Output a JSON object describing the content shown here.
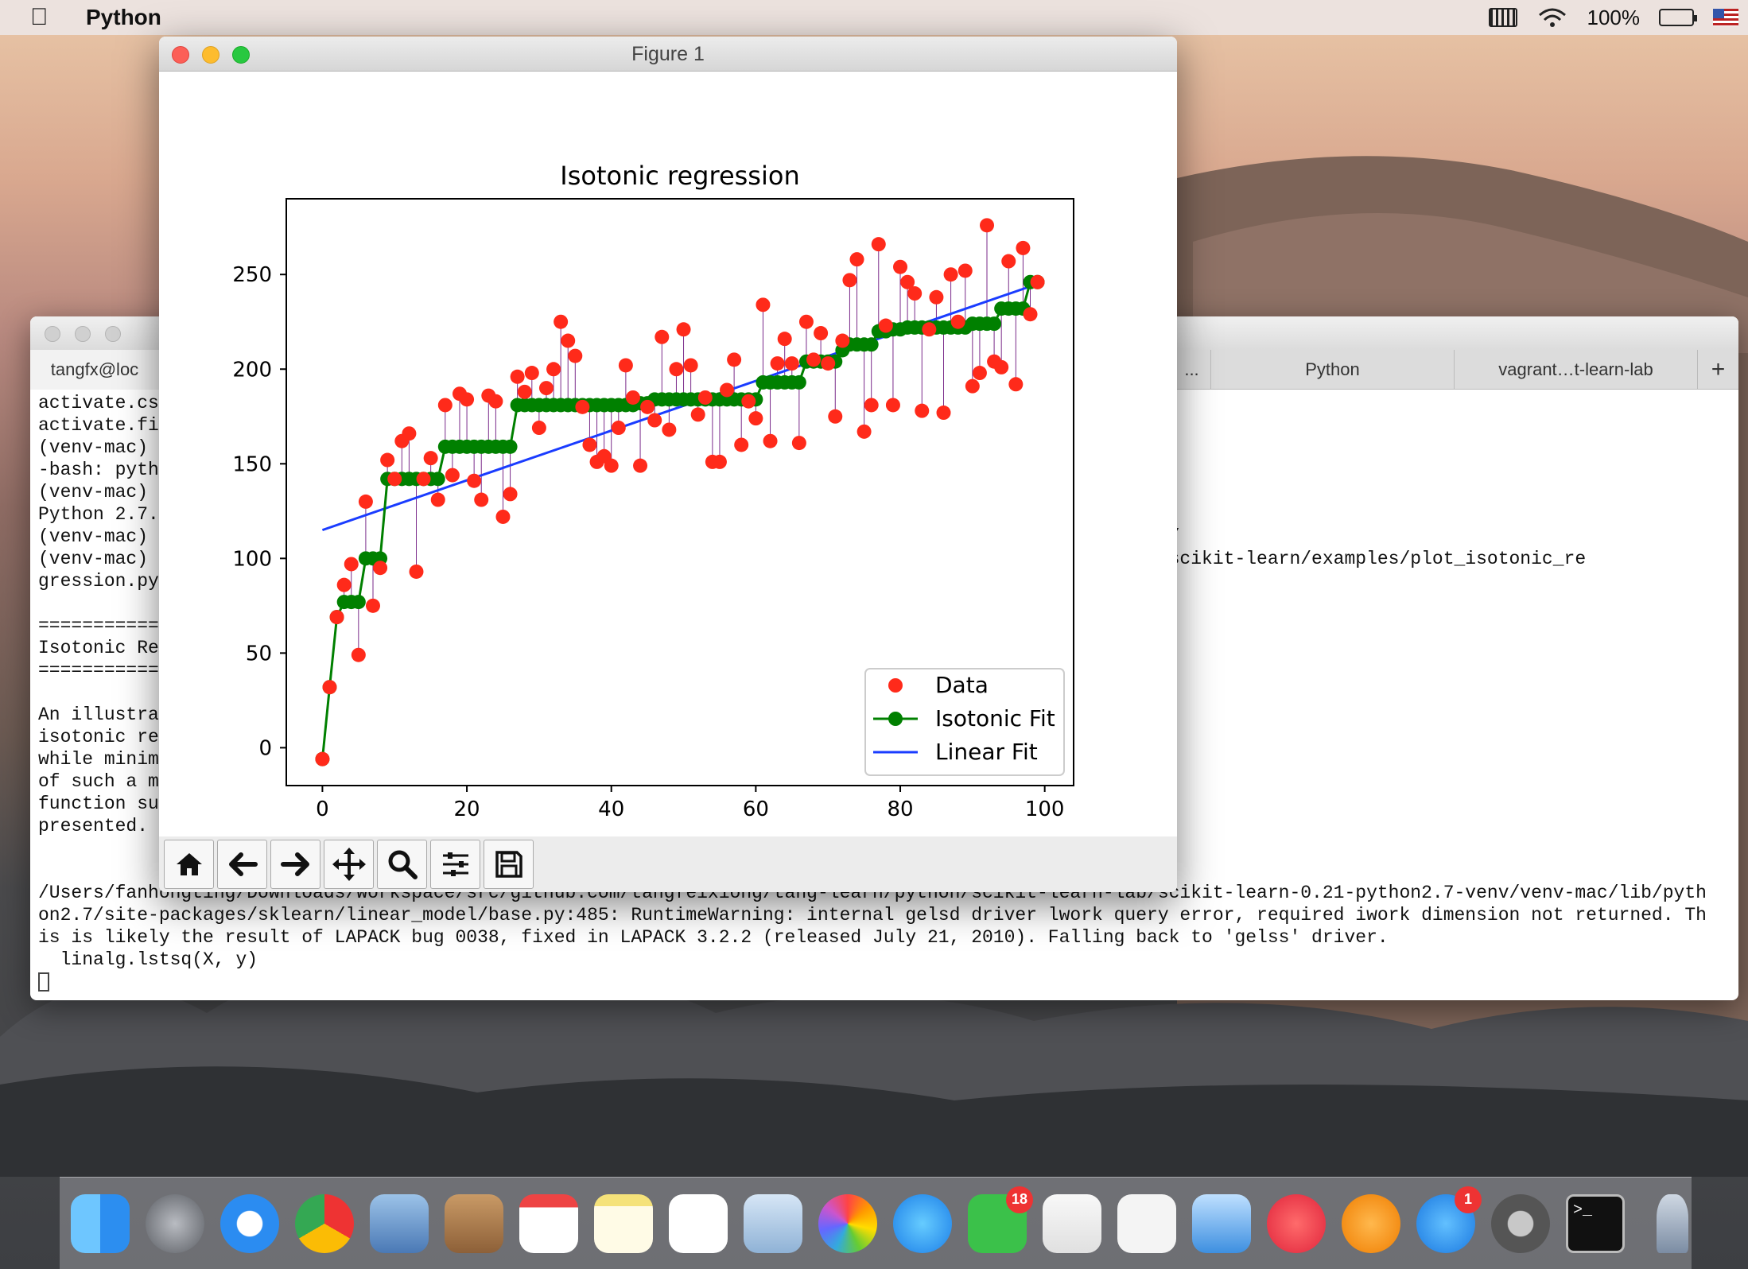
{
  "menubar": {
    "app_name": "Python",
    "battery_percent": "100%"
  },
  "terminal": {
    "tabs": [
      "tangfx@loc",
      "...",
      "Python",
      "vagrant…t-learn-lab",
      "+"
    ],
    "lines": [
      "activate.cs",
      "activate.fi",
      "(venv-mac)",
      "-bash: pyth",
      "(venv-mac)",
      "Python 2.7.",
      "(venv-mac)                                                                                 venv-mac/bin/",
      "(venv-mac)                                                                                 cikit-learn/scikit-learn/examples/plot_isotonic_re",
      "gression.py",
      "",
      "===========",
      "Isotonic Re",
      "===========",
      "",
      "An illustra",
      "isotonic re",
      "while minim",
      "of such a m",
      "function su",
      "presented.",
      "",
      "",
      "/Users/fanhongting/Downloads/workspace/src/github.com/tangfeixiong/tang-learn/python/scikit-learn-lab/scikit-learn-0.21-python2.7-venv/venv-mac/lib/pyth",
      "on2.7/site-packages/sklearn/linear_model/base.py:485: RuntimeWarning: internal gelsd driver lwork query error, required iwork dimension not returned. Th",
      "is is likely the result of LAPACK bug 0038, fixed in LAPACK 3.2.2 (released July 21, 2010). Falling back to 'gelss' driver.",
      "  linalg.lstsq(X, y)"
    ]
  },
  "figure": {
    "window_title": "Figure 1",
    "toolbar": [
      "home-icon",
      "back-icon",
      "forward-icon",
      "pan-icon",
      "zoom-icon",
      "configure-subplots-icon",
      "save-icon"
    ]
  },
  "chart_data": {
    "type": "scatter",
    "title": "Isotonic regression",
    "xlabel": "",
    "ylabel": "",
    "xlim": [
      -5,
      104
    ],
    "ylim": [
      -20,
      290
    ],
    "xticks": [
      0,
      20,
      40,
      60,
      80,
      100
    ],
    "yticks": [
      0,
      50,
      100,
      150,
      200,
      250
    ],
    "legend": {
      "placement": "lower-right",
      "entries": [
        "Data",
        "Isotonic Fit",
        "Linear Fit"
      ]
    },
    "series": [
      {
        "name": "Data",
        "color": "#ff2a1a",
        "x": [
          0,
          1,
          2,
          3,
          4,
          5,
          6,
          7,
          8,
          9,
          10,
          11,
          12,
          13,
          14,
          15,
          16,
          17,
          18,
          19,
          20,
          21,
          22,
          23,
          24,
          25,
          26,
          27,
          28,
          29,
          30,
          31,
          32,
          33,
          34,
          35,
          36,
          37,
          38,
          39,
          40,
          41,
          42,
          43,
          44,
          45,
          46,
          47,
          48,
          49,
          50,
          51,
          52,
          53,
          54,
          55,
          56,
          57,
          58,
          59,
          60,
          61,
          62,
          63,
          64,
          65,
          66,
          67,
          68,
          69,
          70,
          71,
          72,
          73,
          74,
          75,
          76,
          77,
          78,
          79,
          80,
          81,
          82,
          83,
          84,
          85,
          86,
          87,
          88,
          89,
          90,
          91,
          92,
          93,
          94,
          95,
          96,
          97,
          98,
          99
        ],
        "y": [
          -6,
          32,
          69,
          86,
          97,
          49,
          130,
          75,
          95,
          152,
          142,
          162,
          166,
          93,
          142,
          153,
          131,
          181,
          144,
          187,
          184,
          141,
          131,
          186,
          183,
          122,
          134,
          196,
          188,
          198,
          169,
          190,
          200,
          225,
          215,
          207,
          180,
          160,
          151,
          154,
          149,
          169,
          202,
          185,
          149,
          180,
          173,
          217,
          168,
          200,
          221,
          202,
          176,
          185,
          151,
          151,
          189,
          205,
          160,
          183,
          174,
          234,
          162,
          203,
          216,
          203,
          161,
          225,
          205,
          219,
          203,
          175,
          215,
          247,
          258,
          167,
          181,
          266,
          223,
          181,
          254,
          246,
          240,
          178,
          221,
          238,
          177,
          250,
          225,
          252,
          191,
          198,
          276,
          204,
          201,
          257,
          192,
          264,
          229,
          246
        ]
      },
      {
        "name": "Isotonic Fit",
        "color": "#008000",
        "x": [
          0,
          1,
          2,
          3,
          4,
          5,
          6,
          7,
          8,
          9,
          10,
          11,
          12,
          13,
          14,
          15,
          16,
          17,
          18,
          19,
          20,
          21,
          22,
          23,
          24,
          25,
          26,
          27,
          28,
          29,
          30,
          31,
          32,
          33,
          34,
          35,
          36,
          37,
          38,
          39,
          40,
          41,
          42,
          43,
          44,
          45,
          46,
          47,
          48,
          49,
          50,
          51,
          52,
          53,
          54,
          55,
          56,
          57,
          58,
          59,
          60,
          61,
          62,
          63,
          64,
          65,
          66,
          67,
          68,
          69,
          70,
          71,
          72,
          73,
          74,
          75,
          76,
          77,
          78,
          79,
          80,
          81,
          82,
          83,
          84,
          85,
          86,
          87,
          88,
          89,
          90,
          91,
          92,
          93,
          94,
          95,
          96,
          97,
          98,
          99
        ],
        "y": [
          -6,
          32,
          69,
          77,
          77,
          77,
          100,
          100,
          100,
          142,
          142,
          142,
          142,
          142,
          142,
          142,
          142,
          159,
          159,
          159,
          159,
          159,
          159,
          159,
          159,
          159,
          159,
          181,
          181,
          181,
          181,
          181,
          181,
          181,
          181,
          181,
          181,
          181,
          181,
          181,
          181,
          181,
          181,
          181,
          182,
          182,
          184,
          184,
          184,
          184,
          184,
          184,
          184,
          184,
          184,
          184,
          184,
          184,
          184,
          184,
          184,
          193,
          193,
          193,
          193,
          193,
          193,
          204,
          204,
          204,
          204,
          204,
          210,
          213,
          213,
          213,
          213,
          220,
          220,
          221,
          221,
          222,
          222,
          222,
          222,
          222,
          222,
          222,
          222,
          222,
          224,
          224,
          224,
          224,
          232,
          232,
          232,
          232,
          246,
          246
        ]
      },
      {
        "name": "Linear Fit",
        "color": "#1a3cff",
        "x": [
          0,
          99
        ],
        "y": [
          115,
          245
        ]
      }
    ]
  }
}
